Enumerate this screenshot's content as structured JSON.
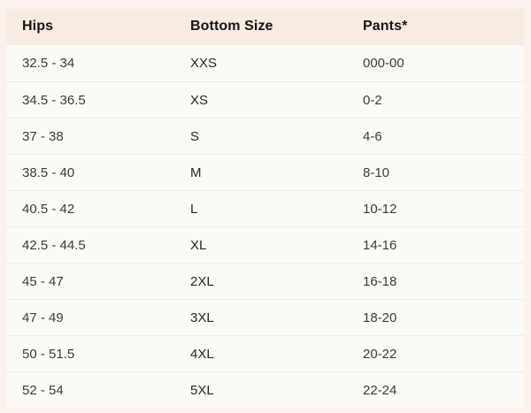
{
  "colors": {
    "page_background": "#faf3ec",
    "header_background": "#f6ece2",
    "body_background": "#fbfaf7",
    "row_separator": "#edece8",
    "header_text": "#141414",
    "body_text": "#3a3a3a"
  },
  "table": {
    "columns": [
      {
        "key": "hips",
        "label": "Hips"
      },
      {
        "key": "bottom_size",
        "label": "Bottom Size"
      },
      {
        "key": "pants",
        "label": "Pants*"
      }
    ],
    "rows": [
      {
        "hips": "32.5 - 34",
        "bottom_size": "XXS",
        "pants": "000-00"
      },
      {
        "hips": "34.5 - 36.5",
        "bottom_size": "XS",
        "pants": "0-2"
      },
      {
        "hips": "37 - 38",
        "bottom_size": "S",
        "pants": "4-6"
      },
      {
        "hips": "38.5 - 40",
        "bottom_size": "M",
        "pants": "8-10"
      },
      {
        "hips": "40.5 - 42",
        "bottom_size": "L",
        "pants": "10-12"
      },
      {
        "hips": "42.5 - 44.5",
        "bottom_size": "XL",
        "pants": "14-16"
      },
      {
        "hips": "45 - 47",
        "bottom_size": "2XL",
        "pants": "16-18"
      },
      {
        "hips": "47 - 49",
        "bottom_size": "3XL",
        "pants": "18-20"
      },
      {
        "hips": "50 - 51.5",
        "bottom_size": "4XL",
        "pants": "20-22"
      },
      {
        "hips": "52 - 54",
        "bottom_size": "5XL",
        "pants": "22-24"
      }
    ]
  }
}
